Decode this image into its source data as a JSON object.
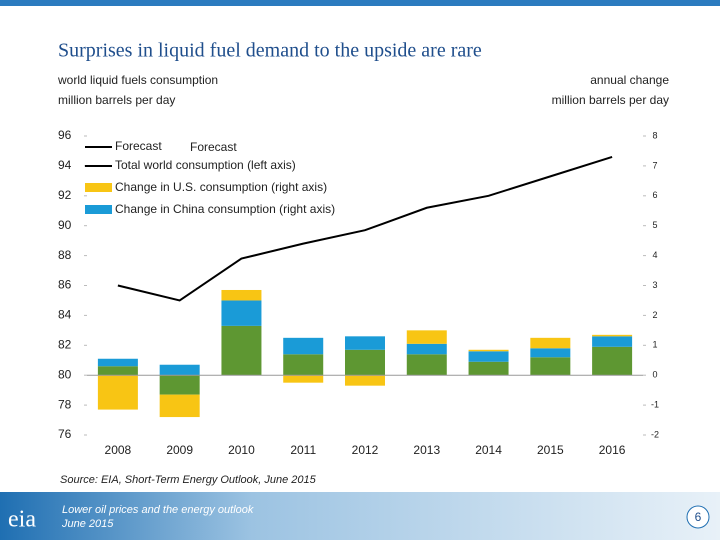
{
  "chart_data": {
    "type": "bar",
    "title": "Surprises in liquid fuel demand to the upside are rare",
    "ylabel": [
      "world liquid fuels consumption",
      "million barrels per day"
    ],
    "y2label": [
      "annual change",
      "million barrels per day"
    ],
    "annotations": [
      "Forecast",
      "Forecast"
    ],
    "categories": [
      "2008",
      "2009",
      "2010",
      "2011",
      "2012",
      "2013",
      "2014",
      "2015",
      "2016"
    ],
    "ylim": [
      76,
      96
    ],
    "yticks": [
      76,
      78,
      80,
      82,
      84,
      86,
      88,
      90,
      92,
      94,
      96
    ],
    "y2lim": [
      -2,
      8
    ],
    "y2ticks": [
      -2,
      -1,
      0,
      1,
      2,
      3,
      4,
      5,
      6,
      7,
      8
    ],
    "series": [
      {
        "name": "Total world consumption (left axis)",
        "type": "line",
        "color": "#000000",
        "values": [
          86.0,
          85.0,
          87.8,
          88.8,
          89.7,
          91.2,
          92.0,
          93.3,
          94.6
        ]
      },
      {
        "color": "#5e9732",
        "axis": "y2",
        "values": [
          0.3,
          -0.65,
          1.65,
          0.7,
          0.85,
          0.7,
          0.45,
          0.6,
          0.95
        ]
      },
      {
        "name": "Change in China consumption (right axis)",
        "color": "#1a9bd7",
        "axis": "y2",
        "values": [
          0.25,
          0.35,
          0.85,
          0.55,
          0.45,
          0.35,
          0.35,
          0.3,
          0.35
        ]
      },
      {
        "name": "Change in U.S. consumption (right axis)",
        "color": "#f8c514",
        "axis": "y2",
        "values": [
          -1.15,
          -0.75,
          0.35,
          -0.25,
          -0.35,
          0.45,
          0.05,
          0.35,
          0.05
        ]
      }
    ],
    "source": "Source: EIA, Short-Term Energy Outlook, June 2015"
  },
  "footer": {
    "logo": "eia",
    "title": "Lower oil prices and the energy outlook",
    "date": "June 2015",
    "page": 6
  }
}
